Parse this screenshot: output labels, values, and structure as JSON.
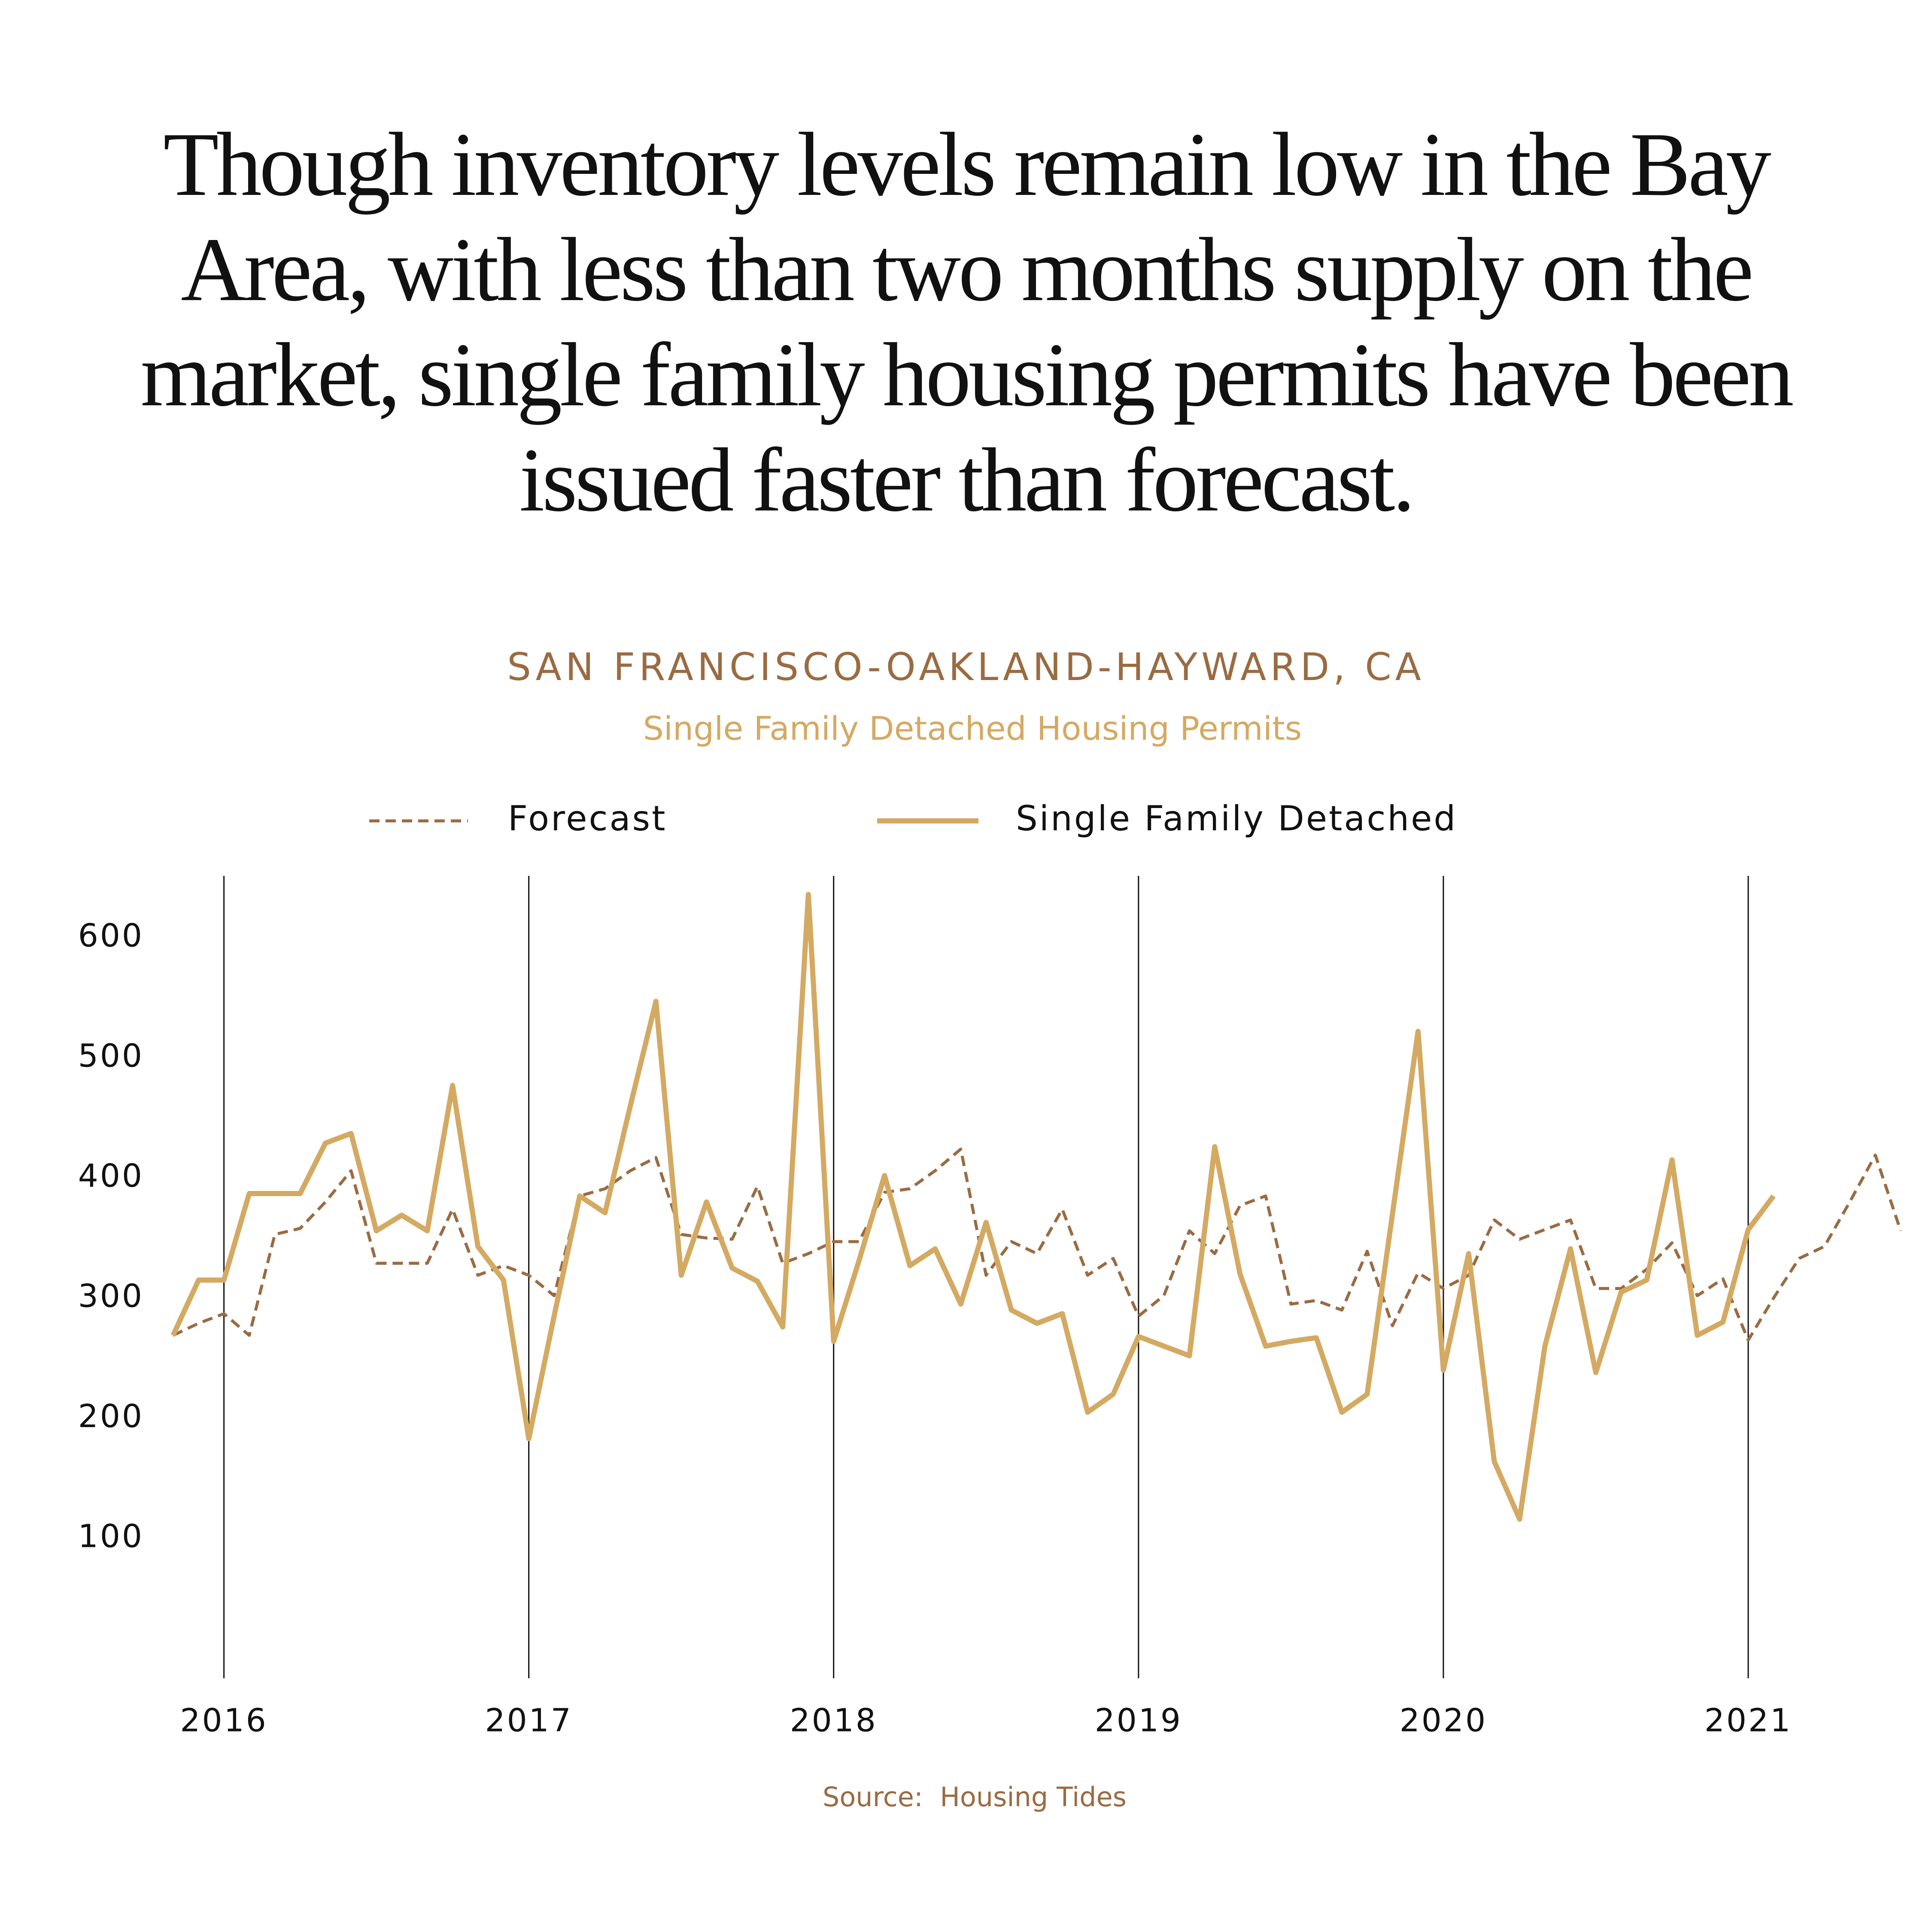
{
  "chart_data": {
    "type": "line",
    "title": "Though inventory levels remain low in the Bay Area, with less than two months supply on the market, single family housing permits have been issued faster than forecast.",
    "subtitle": "SAN FRANCISCO-OAKLAND-HAYWARD, CA",
    "chart_title": "Single Family Detached Housing Permits",
    "source": "Source:  Housing Tides",
    "x": [
      2015.833,
      2015.917,
      2016,
      2016.083,
      2016.167,
      2016.25,
      2016.333,
      2016.417,
      2016.5,
      2016.583,
      2016.667,
      2016.75,
      2016.833,
      2016.917,
      2017,
      2017.083,
      2017.167,
      2017.25,
      2017.333,
      2017.417,
      2017.5,
      2017.583,
      2017.667,
      2017.75,
      2017.833,
      2017.917,
      2018,
      2018.083,
      2018.167,
      2018.25,
      2018.333,
      2018.417,
      2018.5,
      2018.583,
      2018.667,
      2018.75,
      2018.833,
      2018.917,
      2019,
      2019.083,
      2019.167,
      2019.25,
      2019.333,
      2019.417,
      2019.5,
      2019.583,
      2019.667,
      2019.75,
      2019.833,
      2019.917,
      2020,
      2020.083,
      2020.167,
      2020.25,
      2020.333,
      2020.417,
      2020.5,
      2020.583,
      2020.667,
      2020.75,
      2020.833,
      2020.917,
      2021,
      2021.083,
      2021.167,
      2021.25,
      2021.333,
      2021.417,
      2021.5
    ],
    "series": [
      {
        "name": "Forecast",
        "color": "#9a6b42",
        "dashed": true,
        "values": [
          269,
          279,
          287,
          269,
          353,
          358,
          380,
          406,
          329,
          329,
          329,
          374,
          319,
          327,
          319,
          302,
          385,
          391,
          406,
          417,
          353,
          350,
          349,
          393,
          329,
          337,
          347,
          347,
          388,
          391,
          406,
          424,
          319,
          347,
          337,
          374,
          319,
          333,
          285,
          302,
          356,
          337,
          377,
          385,
          295,
          298,
          290,
          339,
          277,
          321,
          308,
          319,
          365,
          349,
          357,
          365,
          308,
          308,
          324,
          346,
          302,
          316,
          265,
          300,
          333,
          343,
          380,
          419,
          356
        ]
      },
      {
        "name": "Single Family Detached",
        "color": "#d4a962",
        "dashed": false,
        "values": [
          269,
          315,
          315,
          387,
          387,
          387,
          429,
          437,
          356,
          369,
          356,
          477,
          343,
          315,
          183,
          285,
          385,
          371,
          460,
          547,
          319,
          380,
          325,
          314,
          276,
          636,
          264,
          331,
          402,
          327,
          341,
          295,
          363,
          290,
          279,
          287,
          205,
          220,
          268,
          260,
          252,
          426,
          320,
          260,
          264,
          267,
          205,
          220,
          370,
          522,
          240,
          337,
          164,
          116,
          260,
          341,
          238,
          305,
          315,
          415,
          269,
          280,
          357,
          385,
          null,
          null,
          null,
          null,
          null
        ]
      }
    ],
    "xlim": [
      2015.833,
      2021.5
    ],
    "xticks": [
      2016,
      2017,
      2018,
      2019,
      2020,
      2021
    ],
    "ylim": [
      -15,
      650
    ],
    "yticks": [
      100,
      200,
      300,
      400,
      500,
      600
    ],
    "grid": "x"
  }
}
